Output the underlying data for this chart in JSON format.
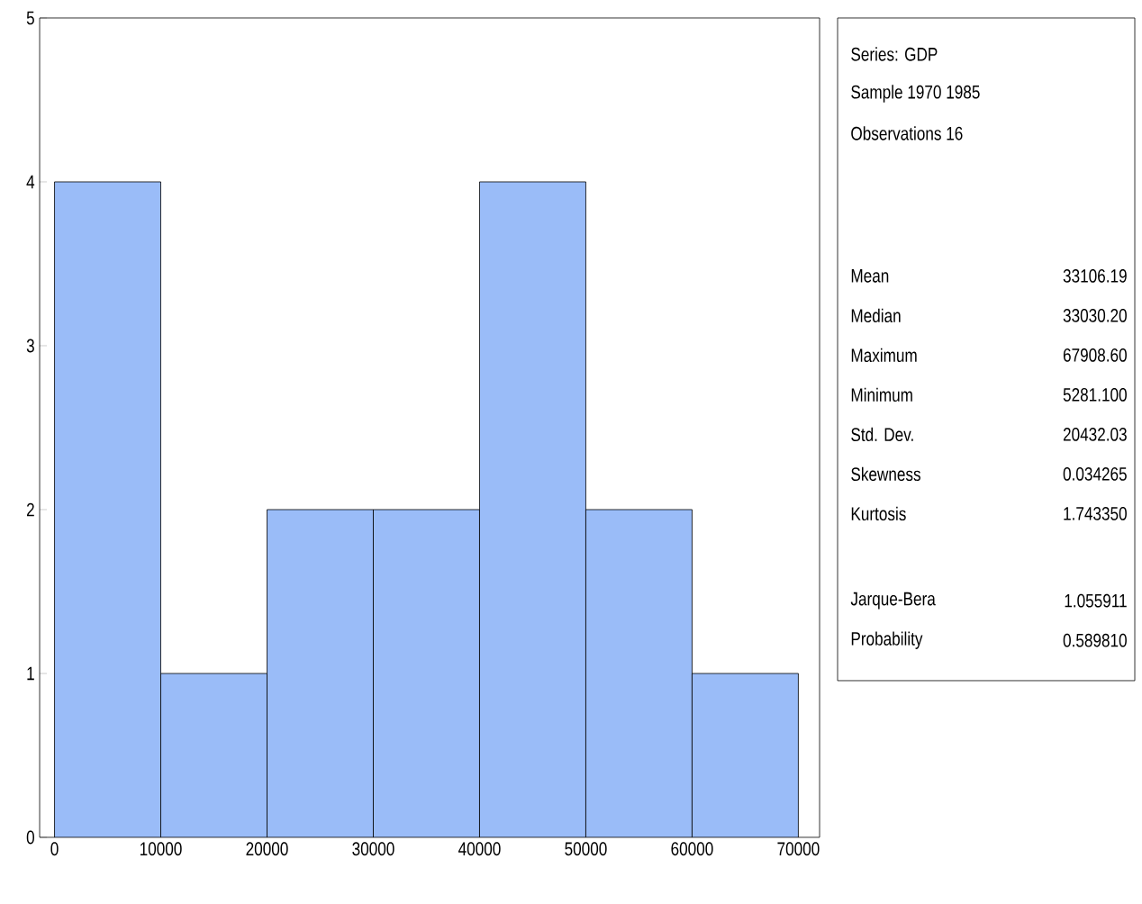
{
  "chart_data": {
    "type": "histogram",
    "bins": [
      0,
      10000,
      20000,
      30000,
      40000,
      50000,
      60000,
      70000
    ],
    "values": [
      4,
      1,
      2,
      2,
      4,
      2,
      1
    ],
    "color": "#9abcf8",
    "xlim": [
      -1400,
      72000
    ],
    "ylim": [
      0,
      5
    ],
    "xticks": [
      0,
      10000,
      20000,
      30000,
      40000,
      50000,
      60000,
      70000
    ],
    "yticks": [
      0,
      1,
      2,
      3,
      4,
      5
    ],
    "annotations": [
      "Series: GDP",
      "Sample 1970 1985",
      "Observations 16",
      "Mean",
      "33106.19",
      "Median",
      "33030.20",
      "Maximum",
      "67908.60",
      "Minimum",
      "5281.100",
      "Std. Dev.",
      "20432.03",
      "Skewness",
      "0.034265",
      "Kurtosis",
      "1.743350",
      "Jarque-Bera",
      "1.055911",
      "Probability",
      "0.589810"
    ]
  }
}
